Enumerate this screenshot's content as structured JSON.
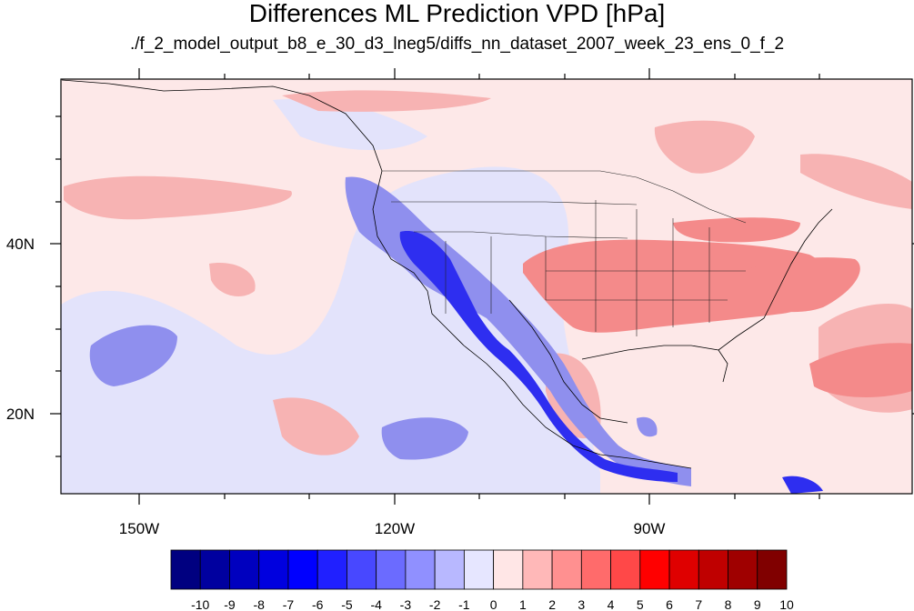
{
  "title": "Differences ML Prediction VPD [hPa]",
  "subtitle": "./f_2_model_output_b8_e_30_d3_lneg5/diffs_nn_dataset_2007_week_23_ens_0_f_2",
  "map": {
    "lat_labels": [
      {
        "text": "40N",
        "lat": 40
      },
      {
        "text": "20N",
        "lat": 20
      }
    ],
    "lon_labels": [
      {
        "text": "150W",
        "lon": -150
      },
      {
        "text": "120W",
        "lon": -120
      },
      {
        "text": "90W",
        "lon": -90
      }
    ],
    "extent": {
      "lon_min": -160,
      "lon_max": -62,
      "lat_min": 11,
      "lat_max": 60
    }
  },
  "colorbar": {
    "labels": [
      "-10",
      "-9",
      "-8",
      "-7",
      "-6",
      "-5",
      "-4",
      "-3",
      "-2",
      "-1",
      "0",
      "1",
      "2",
      "3",
      "4",
      "5",
      "6",
      "7",
      "8",
      "9",
      "10"
    ],
    "colors": [
      "#000080",
      "#00009f",
      "#0000bf",
      "#0000df",
      "#0000ff",
      "#2020ff",
      "#4848ff",
      "#6b6bff",
      "#9090ff",
      "#b8b8ff",
      "#e6e6ff",
      "#ffe6e6",
      "#ffb8b8",
      "#ff9090",
      "#ff6b6b",
      "#ff4848",
      "#ff0000",
      "#df0000",
      "#bf0000",
      "#9f0000",
      "#800000"
    ]
  }
}
